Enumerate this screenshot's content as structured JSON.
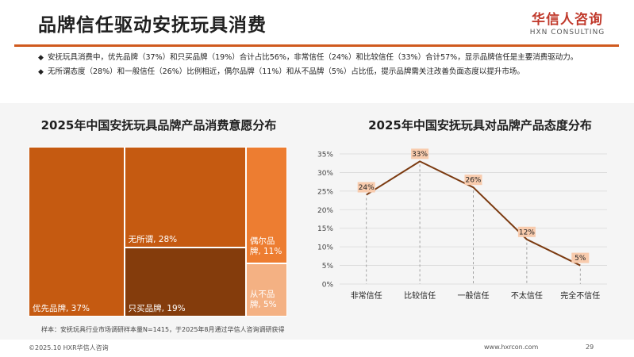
{
  "slide": {
    "title": "品牌信任驱动安抚玩具消费",
    "brand_cn": "华信人咨询",
    "brand_en": "HXN CONSULTING",
    "bullets": [
      "安抚玩具消费中，优先品牌（37%）和只买品牌（19%）合计占比56%，非常信任（24%）和比较信任（33%）合计57%，显示品牌信任是主要消费驱动力。",
      "无所谓态度（28%）和一般信任（26%）比例相近，偶尔品牌（11%）和从不品牌（5%）占比低，提示品牌需关注改善负面态度以提升市场。"
    ],
    "bullet_mark": "◆",
    "note": "样本：安抚玩具行业市场调研样本量N=1415，于2025年8月通过华信人咨询调研获得",
    "copyright": "©2025.10 HXR华信人咨询",
    "site": "www.hxrcon.com",
    "page": "29"
  },
  "colors": {
    "accent": "#d05a1e",
    "tile_main": "#c55a11",
    "tile_dark": "#843c0c",
    "tile_mid": "#ed7d31",
    "tile_light": "#f4b183",
    "line": "#7b3a10",
    "label_bg": "#f8cbad"
  },
  "chart_data": [
    {
      "type": "treemap",
      "title": "2025年中国安抚玩具品牌产品消费意愿分布",
      "items": [
        {
          "label": "优先品牌, 37%",
          "value": 37
        },
        {
          "label": "无所谓, 28%",
          "value": 28
        },
        {
          "label": "只买品牌, 19%",
          "value": 19
        },
        {
          "label": "偶尔品牌, 11%",
          "value": 11
        },
        {
          "label": "从不品牌, 5%",
          "value": 5
        }
      ]
    },
    {
      "type": "line",
      "title": "2025年中国安抚玩具对品牌产品态度分布",
      "categories": [
        "非常信任",
        "比较信任",
        "一般信任",
        "不太信任",
        "完全不信任"
      ],
      "values": [
        24,
        33,
        26,
        12,
        5
      ],
      "data_labels": [
        "24%",
        "33%",
        "26%",
        "12%",
        "5%"
      ],
      "y_ticks": [
        "0%",
        "5%",
        "10%",
        "15%",
        "20%",
        "25%",
        "30%",
        "35%"
      ],
      "ylim": [
        0,
        35
      ]
    }
  ]
}
